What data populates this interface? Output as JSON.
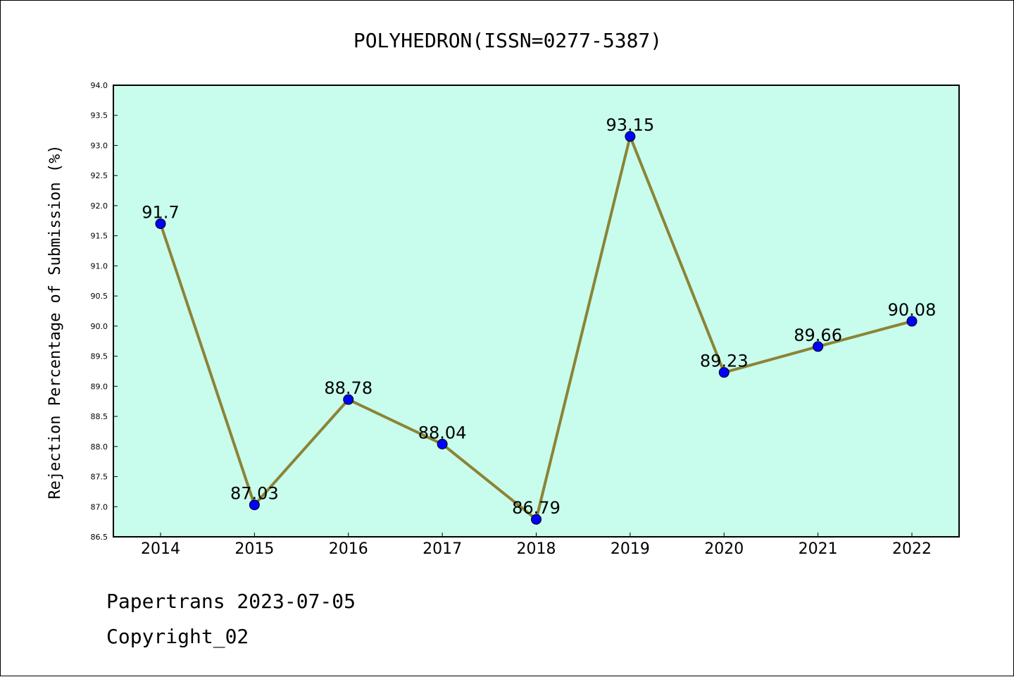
{
  "chart_data": {
    "type": "line",
    "title": "POLYHEDRON(ISSN=0277-5387)",
    "xlabel": "",
    "ylabel": "Rejection Percentage of Submission (%)",
    "categories": [
      "2014",
      "2015",
      "2016",
      "2017",
      "2018",
      "2019",
      "2020",
      "2021",
      "2022"
    ],
    "series": [
      {
        "values": [
          91.7,
          87.03,
          88.78,
          88.04,
          86.79,
          93.15,
          89.23,
          89.66,
          90.08
        ],
        "labels": [
          "91.7",
          "87.03",
          "88.78",
          "88.04",
          "86.79",
          "93.15",
          "89.23",
          "89.66",
          "90.08"
        ]
      }
    ],
    "ylim": [
      86.5,
      94.0
    ],
    "yticks": [
      "86.5",
      "87.0",
      "87.5",
      "88.0",
      "88.5",
      "89.0",
      "89.5",
      "90.0",
      "90.5",
      "91.0",
      "91.5",
      "92.0",
      "92.5",
      "93.0",
      "93.5",
      "94.0"
    ],
    "grid": false,
    "colors": {
      "plot_background": "#c8fcec",
      "line": "#8b8436",
      "marker": "#0000ff"
    }
  },
  "footer": {
    "source": "Papertrans 2023-07-05",
    "copyright": "Copyright_02"
  }
}
